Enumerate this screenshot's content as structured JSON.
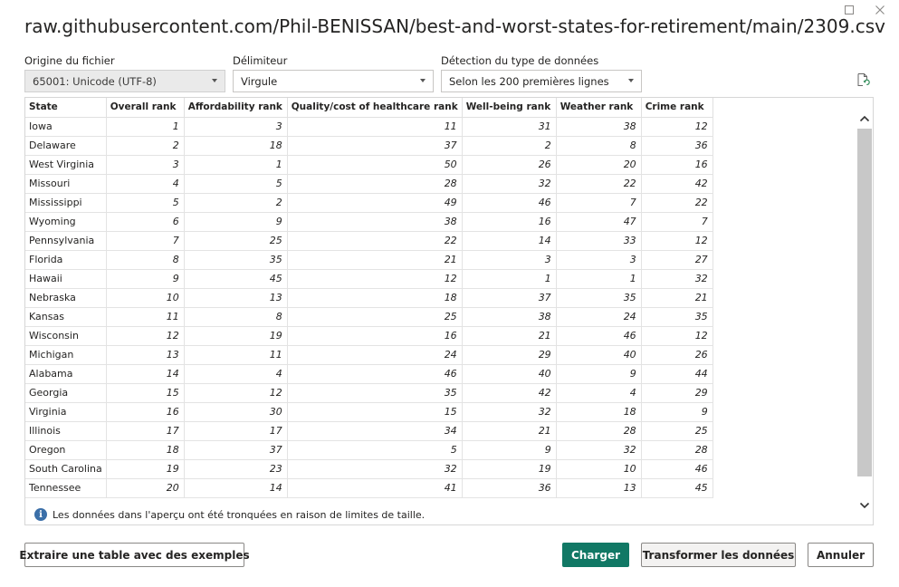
{
  "window": {
    "title": "raw.githubusercontent.com/Phil-BENISSAN/best-and-worst-states-for-retirement/main/2309.csv"
  },
  "controls": {
    "file_origin_label": "Origine du fichier",
    "file_origin_value": "65001: Unicode (UTF-8)",
    "delimiter_label": "Délimiteur",
    "delimiter_value": "Virgule",
    "type_detection_label": "Détection du type de données",
    "type_detection_value": "Selon les 200 premières lignes"
  },
  "table": {
    "columns": [
      "State",
      "Overall rank",
      "Affordability rank",
      "Quality/cost of healthcare rank",
      "Well-being rank",
      "Weather rank",
      "Crime rank"
    ],
    "rows": [
      [
        "Iowa",
        "1",
        "3",
        "11",
        "31",
        "38",
        "12"
      ],
      [
        "Delaware",
        "2",
        "18",
        "37",
        "2",
        "8",
        "36"
      ],
      [
        "West Virginia",
        "3",
        "1",
        "50",
        "26",
        "20",
        "16"
      ],
      [
        "Missouri",
        "4",
        "5",
        "28",
        "32",
        "22",
        "42"
      ],
      [
        "Mississippi",
        "5",
        "2",
        "49",
        "46",
        "7",
        "22"
      ],
      [
        "Wyoming",
        "6",
        "9",
        "38",
        "16",
        "47",
        "7"
      ],
      [
        "Pennsylvania",
        "7",
        "25",
        "22",
        "14",
        "33",
        "12"
      ],
      [
        "Florida",
        "8",
        "35",
        "21",
        "3",
        "3",
        "27"
      ],
      [
        "Hawaii",
        "9",
        "45",
        "12",
        "1",
        "1",
        "32"
      ],
      [
        "Nebraska",
        "10",
        "13",
        "18",
        "37",
        "35",
        "21"
      ],
      [
        "Kansas",
        "11",
        "8",
        "25",
        "38",
        "24",
        "35"
      ],
      [
        "Wisconsin",
        "12",
        "19",
        "16",
        "21",
        "46",
        "12"
      ],
      [
        "Michigan",
        "13",
        "11",
        "24",
        "29",
        "40",
        "26"
      ],
      [
        "Alabama",
        "14",
        "4",
        "46",
        "40",
        "9",
        "44"
      ],
      [
        "Georgia",
        "15",
        "12",
        "35",
        "42",
        "4",
        "29"
      ],
      [
        "Virginia",
        "16",
        "30",
        "15",
        "32",
        "18",
        "9"
      ],
      [
        "Illinois",
        "17",
        "17",
        "34",
        "21",
        "28",
        "25"
      ],
      [
        "Oregon",
        "18",
        "37",
        "5",
        "9",
        "32",
        "28"
      ],
      [
        "South Carolina",
        "19",
        "23",
        "32",
        "19",
        "10",
        "46"
      ],
      [
        "Tennessee",
        "20",
        "14",
        "41",
        "36",
        "13",
        "45"
      ]
    ]
  },
  "notice": "Les données dans l'aperçu ont été tronquées en raison de limites de taille.",
  "buttons": {
    "extract": "Extraire une table avec des exemples",
    "load": "Charger",
    "transform": "Transformer les données",
    "cancel": "Annuler"
  },
  "colors": {
    "primary": "#117865",
    "info": "#3b6fa8"
  }
}
